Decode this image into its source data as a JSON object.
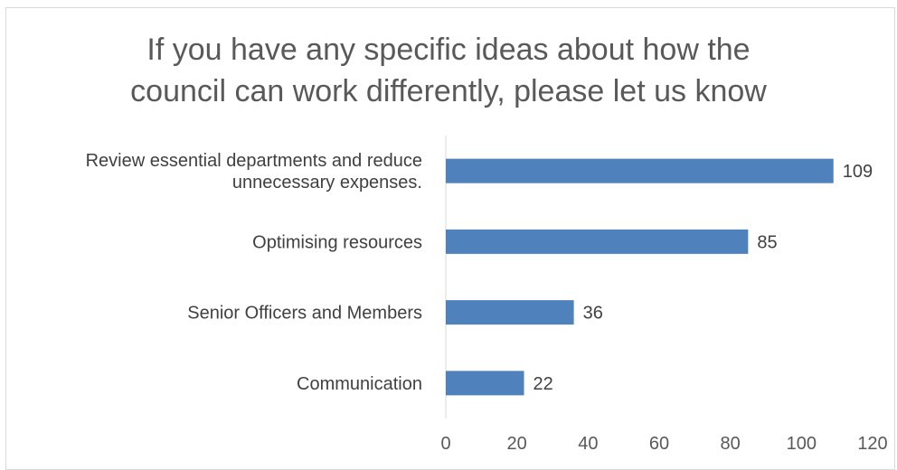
{
  "chart_data": {
    "type": "bar",
    "orientation": "horizontal",
    "title": "If you have any specific ideas about how the\ncouncil can work differently, please let us know",
    "categories": [
      [
        "Review essential departments and reduce",
        "unnecessary expenses."
      ],
      [
        "Optimising resources"
      ],
      [
        "Senior Officers and Members"
      ],
      [
        "Communication"
      ]
    ],
    "values": [
      109,
      85,
      36,
      22
    ],
    "xlim": [
      0,
      120
    ],
    "xticks": [
      "0",
      "20",
      "40",
      "60",
      "80",
      "100",
      "120"
    ],
    "grid": false,
    "legend": "none",
    "data_labels": true,
    "bar_color": "#4f81bd",
    "axis_color": "#d9d9d9"
  }
}
